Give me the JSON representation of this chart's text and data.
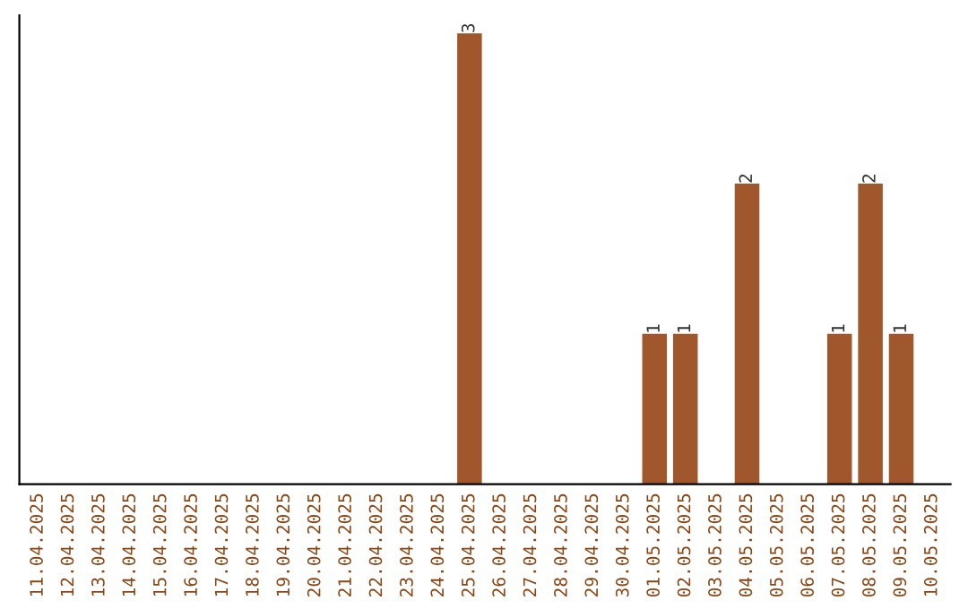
{
  "chart_data": {
    "type": "bar",
    "categories": [
      "11.04.2025",
      "12.04.2025",
      "13.04.2025",
      "14.04.2025",
      "15.04.2025",
      "16.04.2025",
      "17.04.2025",
      "18.04.2025",
      "19.04.2025",
      "20.04.2025",
      "21.04.2025",
      "22.04.2025",
      "23.04.2025",
      "24.04.2025",
      "25.04.2025",
      "26.04.2025",
      "27.04.2025",
      "28.04.2025",
      "29.04.2025",
      "30.04.2025",
      "01.05.2025",
      "02.05.2025",
      "03.05.2025",
      "04.05.2025",
      "05.05.2025",
      "06.05.2025",
      "07.05.2025",
      "08.05.2025",
      "09.05.2025",
      "10.05.2025"
    ],
    "values": [
      null,
      null,
      null,
      null,
      null,
      null,
      null,
      null,
      null,
      null,
      null,
      null,
      null,
      null,
      3,
      null,
      null,
      null,
      null,
      null,
      1,
      1,
      null,
      2,
      null,
      null,
      1,
      2,
      1,
      null
    ],
    "data_labels": true,
    "color": "#a0572b",
    "tick_labels": "x",
    "grid": false,
    "legend": false
  }
}
